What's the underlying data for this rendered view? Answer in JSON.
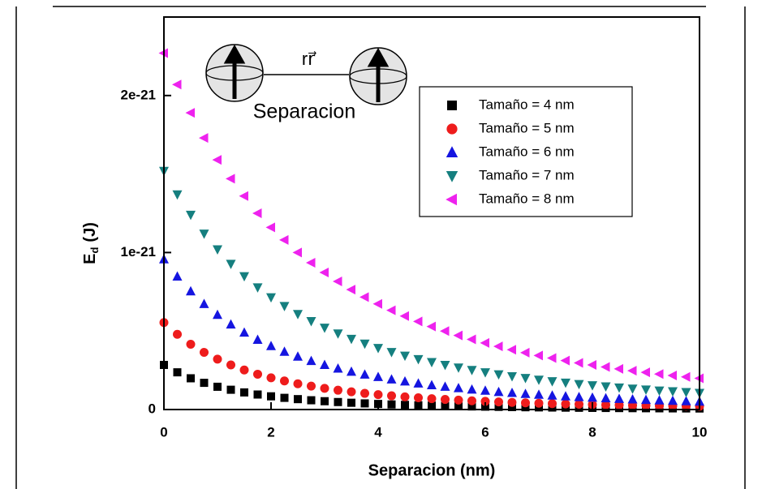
{
  "chart_data": {
    "type": "scatter",
    "xlabel": "Separacion (nm)",
    "ylabel": {
      "main": "E",
      "subscript": "d",
      "unit": "(J)"
    },
    "annotations": [
      "rr⃗",
      "Separacion"
    ],
    "xlim": [
      0,
      10
    ],
    "xticks": [
      0,
      2,
      4,
      6,
      8,
      10
    ],
    "ylim": [
      0,
      2.5e-21
    ],
    "yticks": [
      0,
      1e-21,
      2e-21
    ],
    "legend": "upper right",
    "x": [
      0,
      0.25,
      0.5,
      0.75,
      1,
      1.25,
      1.5,
      1.75,
      2,
      2.25,
      2.5,
      2.75,
      3,
      3.25,
      3.5,
      3.75,
      4,
      4.25,
      4.5,
      4.75,
      5,
      5.25,
      5.5,
      5.75,
      6,
      6.25,
      6.5,
      6.75,
      7,
      7.25,
      7.5,
      7.75,
      8,
      8.25,
      8.5,
      8.75,
      9,
      9.25,
      9.5,
      9.75,
      10
    ],
    "series": [
      {
        "name": "Tamaño = 4 nm",
        "color": "#000000",
        "marker": "square",
        "values": [
          2.84e-22,
          2.37e-22,
          1.99e-22,
          1.7e-22,
          1.45e-22,
          1.26e-22,
          1.09e-22,
          9.56e-23,
          8.41e-23,
          7.44e-23,
          6.62e-23,
          5.91e-23,
          5.3e-23,
          4.77e-23,
          4.31e-23,
          3.9e-23,
          3.55e-23,
          3.24e-23,
          2.96e-23,
          2.71e-23,
          2.49e-23,
          2.3e-23,
          2.12e-23,
          1.96e-23,
          1.82e-23,
          1.69e-23,
          1.57e-23,
          1.46e-23,
          1.37e-23,
          1.28e-23,
          1.2e-23,
          1.12e-23,
          1.05e-23,
          9.89e-24,
          9.31e-24,
          8.77e-24,
          8.27e-24,
          7.81e-24,
          7.39e-24,
          6.99e-24,
          6.62e-24
        ]
      },
      {
        "name": "Tamaño = 5 nm",
        "color": "#ee1c1c",
        "marker": "circle",
        "values": [
          5.54e-22,
          4.79e-22,
          4.16e-22,
          3.64e-22,
          3.21e-22,
          2.84e-22,
          2.52e-22,
          2.25e-22,
          2.02e-22,
          1.82e-22,
          1.64e-22,
          1.49e-22,
          1.35e-22,
          1.23e-22,
          1.13e-22,
          1.03e-22,
          9.5e-23,
          8.75e-23,
          8.08e-23,
          7.47e-23,
          6.93e-23,
          6.43e-23,
          5.98e-23,
          5.57e-23,
          5.2e-23,
          4.86e-23,
          4.55e-23,
          4.27e-23,
          4.01e-23,
          3.77e-23,
          3.55e-23,
          3.34e-23,
          3.15e-23,
          2.98e-23,
          2.81e-23,
          2.66e-23,
          2.52e-23,
          2.39e-23,
          2.27e-23,
          2.16e-23,
          2.05e-23
        ]
      },
      {
        "name": "Tamaño = 6 nm",
        "color": "#1515e0",
        "marker": "triangle-up",
        "values": [
          9.57e-22,
          8.47e-22,
          7.53e-22,
          6.72e-22,
          6.03e-22,
          5.42e-22,
          4.9e-22,
          4.44e-22,
          4.04e-22,
          3.68e-22,
          3.37e-22,
          3.09e-22,
          2.84e-22,
          2.61e-22,
          2.41e-22,
          2.23e-22,
          2.07e-22,
          1.92e-22,
          1.79e-22,
          1.66e-22,
          1.55e-22,
          1.45e-22,
          1.36e-22,
          1.27e-22,
          1.2e-22,
          1.12e-22,
          1.06e-22,
          9.97e-23,
          9.41e-23,
          8.89e-23,
          8.4e-23,
          7.95e-23,
          7.53e-23,
          7.14e-23,
          6.78e-23,
          6.44e-23,
          6.12e-23,
          5.83e-23,
          5.55e-23,
          5.29e-23,
          5.05e-23
        ]
      },
      {
        "name": "Tamaño = 7 nm",
        "color": "#157f7f",
        "marker": "triangle-down",
        "values": [
          1.52e-21,
          1.37e-21,
          1.24e-21,
          1.12e-21,
          1.02e-21,
          9.28e-22,
          8.49e-22,
          7.78e-22,
          7.15e-22,
          6.59e-22,
          6.08e-22,
          5.63e-22,
          5.21e-22,
          4.84e-22,
          4.5e-22,
          4.2e-22,
          3.92e-22,
          3.66e-22,
          3.43e-22,
          3.21e-22,
          3.02e-22,
          2.84e-22,
          2.67e-22,
          2.52e-22,
          2.37e-22,
          2.24e-22,
          2.12e-22,
          2.01e-22,
          1.9e-22,
          1.8e-22,
          1.71e-22,
          1.62e-22,
          1.54e-22,
          1.47e-22,
          1.4e-22,
          1.33e-22,
          1.27e-22,
          1.21e-22,
          1.16e-22,
          1.11e-22,
          1.06e-22
        ]
      },
      {
        "name": "Tamaño = 8 nm",
        "color": "#ee22ee",
        "marker": "triangle-left",
        "values": [
          2.27e-21,
          2.07e-21,
          1.89e-21,
          1.73e-21,
          1.59e-21,
          1.47e-21,
          1.36e-21,
          1.25e-21,
          1.16e-21,
          1.08e-21,
          1e-21,
          9.35e-22,
          8.73e-22,
          8.16e-22,
          7.64e-22,
          7.16e-22,
          6.73e-22,
          6.32e-22,
          5.95e-22,
          5.61e-22,
          5.29e-22,
          5e-22,
          4.72e-22,
          4.47e-22,
          4.24e-22,
          4.02e-22,
          3.81e-22,
          3.62e-22,
          3.44e-22,
          3.28e-22,
          3.12e-22,
          2.97e-22,
          2.84e-22,
          2.71e-22,
          2.59e-22,
          2.47e-22,
          2.37e-22,
          2.26e-22,
          2.17e-22,
          2.08e-22,
          1.99e-22
        ]
      }
    ]
  }
}
